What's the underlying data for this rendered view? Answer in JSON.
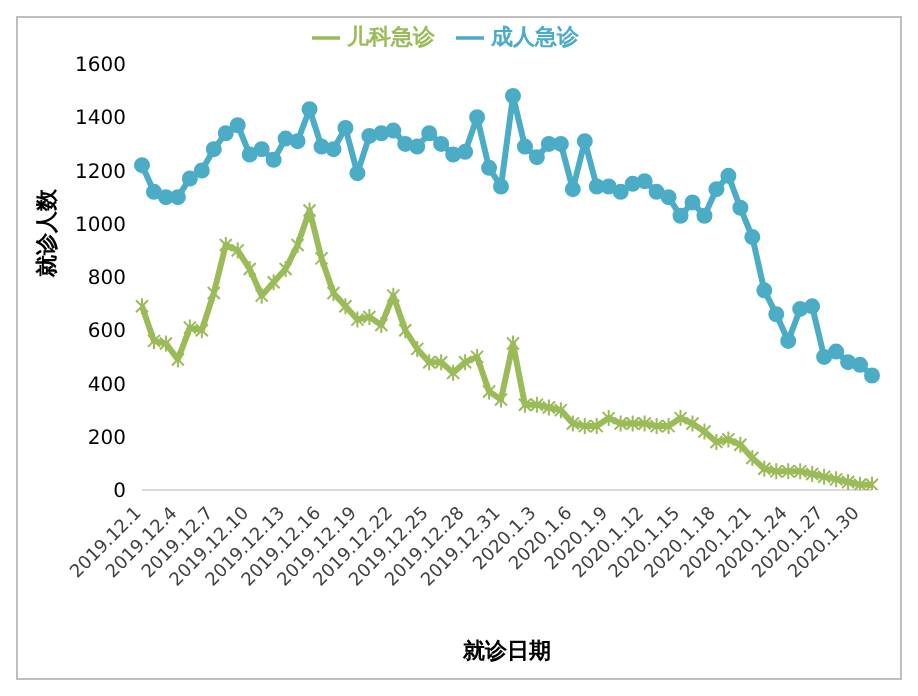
{
  "chart_data": {
    "type": "line",
    "xlabel": "就诊日期",
    "ylabel": "就诊人数",
    "categories": [
      "2019.12.1",
      null,
      null,
      "2019.12.4",
      null,
      null,
      "2019.12.7",
      null,
      null,
      "2019.12.10",
      null,
      null,
      "2019.12.13",
      null,
      null,
      "2019.12.16",
      null,
      null,
      "2019.12.19",
      null,
      null,
      "2019.12.22",
      null,
      null,
      "2019.12.25",
      null,
      null,
      "2019.12.28",
      null,
      null,
      "2019.12.31",
      null,
      null,
      "2020.1.3",
      null,
      null,
      "2020.1.6",
      null,
      null,
      "2020.1.9",
      null,
      null,
      "2020.1.12",
      null,
      null,
      "2020.1.15",
      null,
      null,
      "2020.1.18",
      null,
      null,
      "2020.1.21",
      null,
      null,
      "2020.1.24",
      null,
      null,
      "2020.1.27",
      null,
      null,
      "2020.1.30",
      null
    ],
    "series": [
      {
        "name": "儿科急诊",
        "color": "#9bbb59",
        "marker": "cross",
        "values": [
          690,
          560,
          550,
          490,
          610,
          600,
          740,
          920,
          900,
          830,
          730,
          780,
          830,
          920,
          1050,
          870,
          740,
          690,
          640,
          650,
          620,
          730,
          600,
          530,
          480,
          480,
          440,
          480,
          500,
          370,
          340,
          550,
          320,
          320,
          310,
          300,
          250,
          240,
          240,
          270,
          250,
          250,
          250,
          240,
          240,
          270,
          250,
          220,
          180,
          190,
          170,
          120,
          80,
          70,
          70,
          70,
          60,
          50,
          40,
          30,
          20,
          20
        ]
      },
      {
        "name": "成人急诊",
        "color": "#4bacc6",
        "marker": "circle",
        "values": [
          1220,
          1120,
          1100,
          1100,
          1170,
          1200,
          1280,
          1340,
          1370,
          1260,
          1280,
          1240,
          1320,
          1310,
          1430,
          1290,
          1280,
          1360,
          1190,
          1330,
          1340,
          1350,
          1300,
          1290,
          1340,
          1300,
          1260,
          1270,
          1400,
          1210,
          1140,
          1480,
          1290,
          1250,
          1300,
          1300,
          1130,
          1310,
          1140,
          1140,
          1120,
          1150,
          1160,
          1120,
          1100,
          1030,
          1080,
          1030,
          1130,
          1180,
          1060,
          950,
          750,
          660,
          560,
          680,
          690,
          500,
          520,
          480,
          470,
          430
        ]
      }
    ],
    "ylim": [
      0,
      1600
    ],
    "yticks": [
      0,
      200,
      400,
      600,
      800,
      1000,
      1200,
      1400,
      1600
    ],
    "grid": false,
    "legend": "top"
  }
}
